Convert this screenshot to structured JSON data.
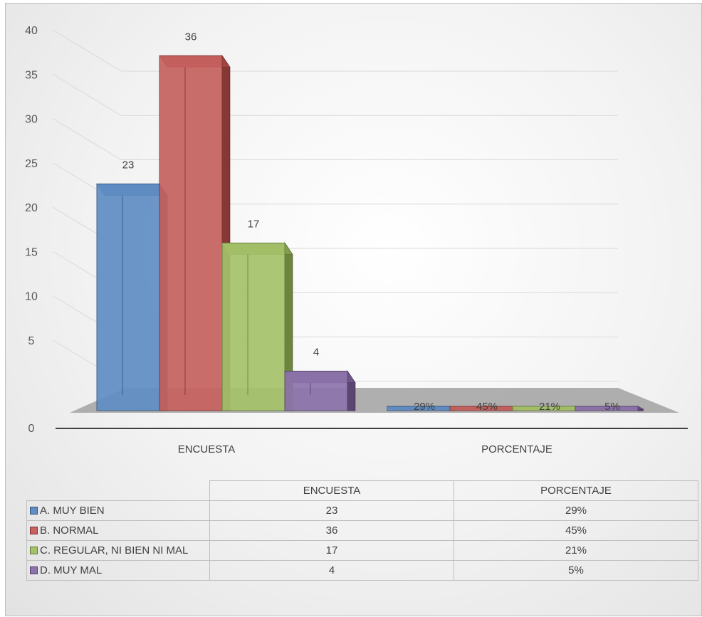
{
  "chart_data": {
    "type": "bar",
    "title": "",
    "xlabel": "",
    "ylabel": "",
    "ylim": [
      0,
      40
    ],
    "yticks": [
      0,
      5,
      10,
      15,
      20,
      25,
      30,
      35,
      40
    ],
    "grid": true,
    "three_d": true,
    "legend_placement": "data-table-below",
    "categories": [
      "ENCUESTA",
      "PORCENTAJE"
    ],
    "series": [
      {
        "name": "A. MUY BIEN",
        "color": "#4f81bd",
        "values": [
          23,
          0.29
        ],
        "labels": [
          "23",
          "29%"
        ]
      },
      {
        "name": "B. NORMAL",
        "color": "#c0504d",
        "values": [
          36,
          0.45
        ],
        "labels": [
          "36",
          "45%"
        ]
      },
      {
        "name": "C. REGULAR, NI BIEN NI MAL",
        "color": "#9bbb59",
        "values": [
          17,
          0.21
        ],
        "labels": [
          "17",
          "21%"
        ]
      },
      {
        "name": "D. MUY MAL",
        "color": "#8064a2",
        "values": [
          4,
          0.05
        ],
        "labels": [
          "4",
          "5%"
        ]
      }
    ]
  },
  "table": {
    "headers": [
      "ENCUESTA",
      "PORCENTAJE"
    ],
    "rows": [
      {
        "label": "A. MUY BIEN",
        "values": [
          "23",
          "29%"
        ]
      },
      {
        "label": "B. NORMAL",
        "values": [
          "36",
          "45%"
        ]
      },
      {
        "label": "C. REGULAR, NI BIEN NI MAL",
        "values": [
          "17",
          "21%"
        ]
      },
      {
        "label": "D. MUY MAL",
        "values": [
          "4",
          "5%"
        ]
      }
    ]
  }
}
